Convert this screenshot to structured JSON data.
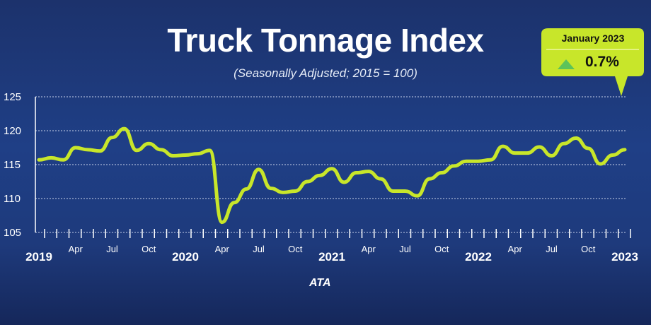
{
  "chart_data": {
    "type": "line",
    "title": "Truck Tonnage Index",
    "subtitle": "(Seasonally Adjusted; 2015 = 100)",
    "ylim": [
      105,
      125
    ],
    "yticks": [
      105,
      110,
      115,
      120,
      125
    ],
    "grid": true,
    "xtick_labels": [
      {
        "month": 0,
        "label": "2019",
        "year": true
      },
      {
        "month": 3,
        "label": "Apr"
      },
      {
        "month": 6,
        "label": "Jul"
      },
      {
        "month": 9,
        "label": "Oct"
      },
      {
        "month": 12,
        "label": "2020",
        "year": true
      },
      {
        "month": 15,
        "label": "Apr"
      },
      {
        "month": 18,
        "label": "Jul"
      },
      {
        "month": 21,
        "label": "Oct"
      },
      {
        "month": 24,
        "label": "2021",
        "year": true
      },
      {
        "month": 27,
        "label": "Apr"
      },
      {
        "month": 30,
        "label": "Jul"
      },
      {
        "month": 33,
        "label": "Oct"
      },
      {
        "month": 36,
        "label": "2022",
        "year": true
      },
      {
        "month": 39,
        "label": "Apr"
      },
      {
        "month": 42,
        "label": "Jul"
      },
      {
        "month": 45,
        "label": "Oct"
      },
      {
        "month": 48,
        "label": "2023",
        "year": true
      }
    ],
    "x_start": "2019-01",
    "x_end": "2023-01",
    "series": [
      {
        "color": "#c8e62a",
        "values": [
          115.7,
          116.0,
          115.7,
          117.5,
          117.2,
          117.0,
          119.0,
          120.3,
          117.1,
          118.1,
          117.2,
          116.3,
          116.4,
          116.6,
          117.1,
          106.5,
          109.4,
          111.4,
          114.3,
          111.5,
          110.9,
          111.1,
          112.5,
          113.4,
          114.4,
          112.4,
          113.8,
          114.0,
          112.9,
          111.1,
          111.1,
          110.4,
          112.9,
          113.8,
          114.8,
          115.5,
          115.5,
          115.7,
          117.7,
          116.7,
          116.7,
          117.6,
          116.3,
          118.1,
          118.9,
          117.4,
          115.1,
          116.4,
          117.2
        ]
      }
    ],
    "callout": {
      "heading": "January 2023",
      "value": "0.7%",
      "direction": "up",
      "color": "#c8e62a",
      "arrow_color": "#5cc35a"
    }
  },
  "logo": "ATA",
  "colors": {
    "background": "#1f3f86",
    "line": "#c8e62a"
  }
}
